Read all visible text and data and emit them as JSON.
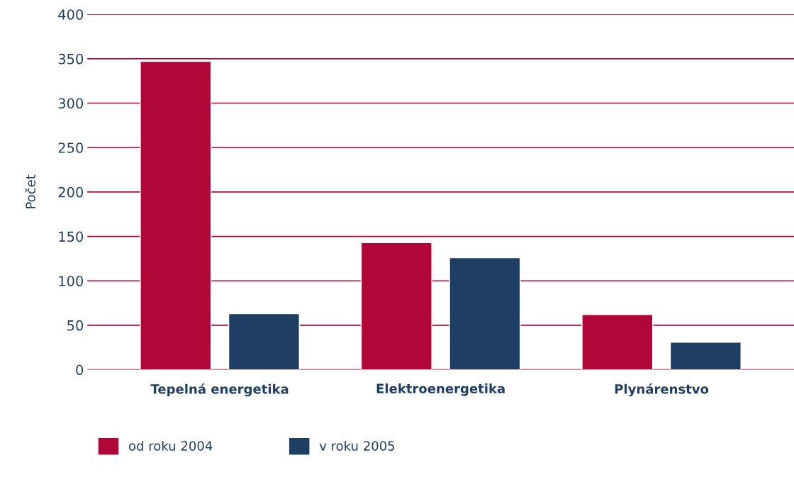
{
  "chart_data": {
    "type": "bar",
    "ylabel": "Počet",
    "categories": [
      "Tepelná energetika",
      "Elektroenergetika",
      "Plynárenstvo"
    ],
    "series": [
      {
        "name": "od roku 2004",
        "color": "#b0063a",
        "values": [
          347,
          143,
          62
        ]
      },
      {
        "name": "v roku 2005",
        "color": "#1f3e63",
        "values": [
          63,
          126,
          31
        ]
      }
    ],
    "ylim": [
      0,
      400
    ],
    "yticks": [
      0,
      50,
      100,
      150,
      200,
      250,
      300,
      350,
      400
    ],
    "grid": "y",
    "legend": "bottom left"
  }
}
